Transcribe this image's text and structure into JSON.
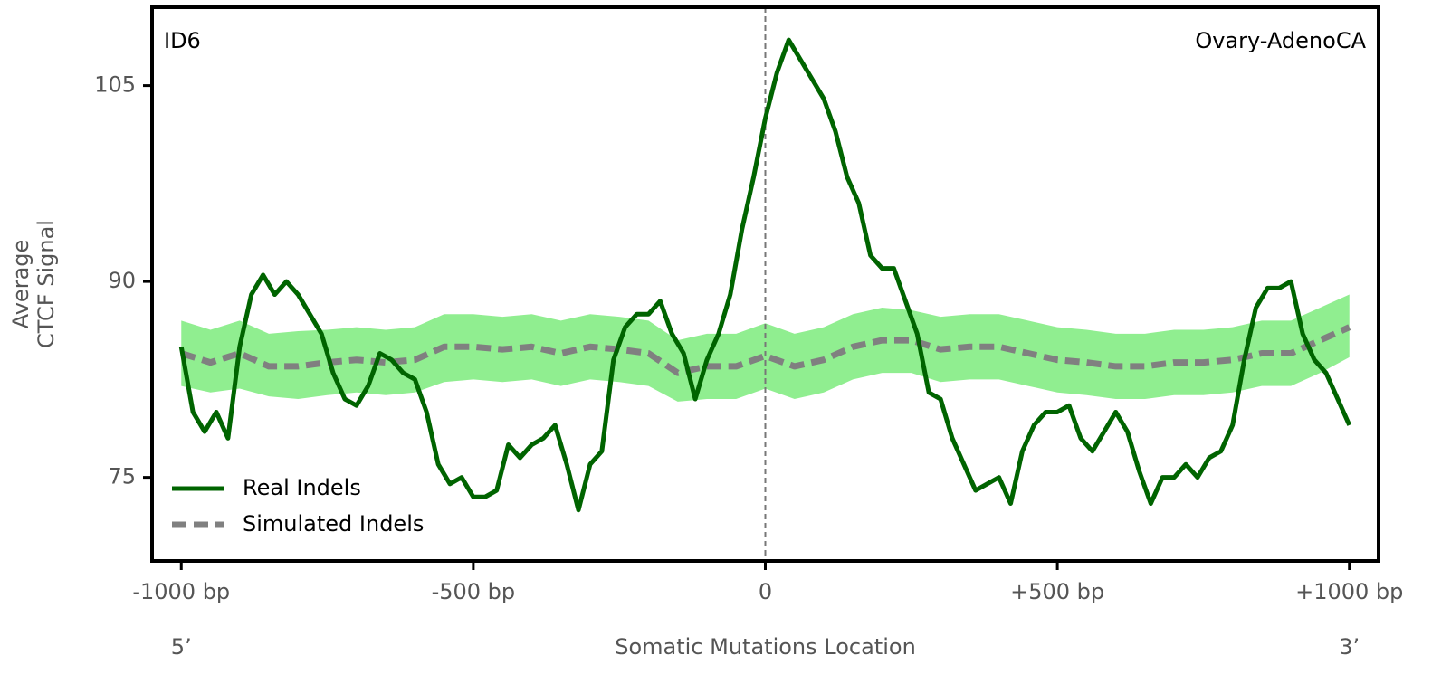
{
  "chart_data": {
    "type": "line",
    "annotations": [
      "ID6",
      "Ovary-AdenoCA"
    ],
    "xlabel": "Somatic Mutations Location",
    "ylabel": [
      "Average",
      "CTCF Signal"
    ],
    "x_end_labels": [
      "5’",
      "3’"
    ],
    "xlim": [
      -1050,
      1050
    ],
    "ylim": [
      68.6,
      111
    ],
    "xticks": [
      {
        "value": -1000,
        "label": "-1000 bp"
      },
      {
        "value": -500,
        "label": "-500 bp"
      },
      0,
      {
        "value": 500,
        "label": "+500 bp"
      },
      {
        "value": 1000,
        "label": "+1000 bp"
      }
    ],
    "yticks": [
      75,
      90,
      105
    ],
    "vline": 0,
    "legend": "lower left",
    "series": [
      {
        "name": "Real Indels",
        "color": "#006400",
        "x": [
          -1000,
          -980,
          -960,
          -940,
          -920,
          -900,
          -880,
          -860,
          -840,
          -820,
          -800,
          -780,
          -760,
          -740,
          -720,
          -700,
          -680,
          -660,
          -640,
          -620,
          -600,
          -580,
          -560,
          -540,
          -520,
          -500,
          -480,
          -460,
          -440,
          -420,
          -400,
          -380,
          -360,
          -340,
          -320,
          -300,
          -280,
          -260,
          -240,
          -220,
          -200,
          -180,
          -160,
          -140,
          -120,
          -100,
          -80,
          -60,
          -40,
          -20,
          0,
          20,
          40,
          60,
          80,
          100,
          120,
          140,
          160,
          180,
          200,
          220,
          240,
          260,
          280,
          300,
          320,
          340,
          360,
          380,
          400,
          420,
          440,
          460,
          480,
          500,
          520,
          540,
          560,
          580,
          600,
          620,
          640,
          660,
          680,
          700,
          720,
          740,
          760,
          780,
          800,
          820,
          840,
          860,
          880,
          900,
          920,
          940,
          960,
          980,
          1000
        ],
        "values": [
          85,
          80,
          78.5,
          80,
          78,
          85,
          89,
          90.5,
          89,
          90,
          89,
          87.5,
          86,
          83,
          81,
          80.5,
          82,
          84.5,
          84,
          83,
          82.5,
          80,
          76,
          74.5,
          75,
          73.5,
          73.5,
          74,
          77.5,
          76.5,
          77.5,
          78,
          79,
          76,
          72.5,
          76,
          77,
          84,
          86.5,
          87.5,
          87.5,
          88.5,
          86,
          84.5,
          81,
          84,
          86,
          89,
          94,
          98,
          102.5,
          106,
          108.5,
          107,
          105.5,
          104,
          101.5,
          98,
          96,
          92,
          91,
          91,
          88.5,
          86,
          81.5,
          81,
          78,
          76,
          74,
          74.5,
          75,
          73,
          77,
          79,
          80,
          80,
          80.5,
          78,
          77,
          78.5,
          80,
          78.5,
          75.5,
          73,
          75,
          75,
          76,
          75,
          76.5,
          77,
          79,
          84,
          88,
          89.5,
          89.5,
          90,
          86,
          84,
          83,
          81,
          79
        ]
      },
      {
        "name": "Simulated Indels",
        "color": "#808080",
        "x": [
          -1000,
          -950,
          -900,
          -850,
          -800,
          -750,
          -700,
          -650,
          -600,
          -550,
          -500,
          -450,
          -400,
          -350,
          -300,
          -250,
          -200,
          -150,
          -100,
          -50,
          0,
          50,
          100,
          150,
          200,
          250,
          300,
          350,
          400,
          450,
          500,
          550,
          600,
          650,
          700,
          750,
          800,
          850,
          900,
          950,
          1000
        ],
        "values": [
          84.5,
          83.8,
          84.5,
          83.5,
          83.5,
          83.8,
          84,
          83.8,
          84,
          85,
          85,
          84.8,
          85,
          84.5,
          85,
          84.8,
          84.5,
          83,
          83.5,
          83.5,
          84.3,
          83.5,
          84,
          85,
          85.5,
          85.5,
          84.8,
          85,
          85,
          84.5,
          84,
          83.8,
          83.5,
          83.5,
          83.8,
          83.8,
          84,
          84.5,
          84.5,
          85.5,
          86.5
        ]
      }
    ],
    "band": {
      "color": "#90ee90",
      "x": [
        -1000,
        -950,
        -900,
        -850,
        -800,
        -750,
        -700,
        -650,
        -600,
        -550,
        -500,
        -450,
        -400,
        -350,
        -300,
        -250,
        -200,
        -150,
        -100,
        -50,
        0,
        50,
        100,
        150,
        200,
        250,
        300,
        350,
        400,
        450,
        500,
        550,
        600,
        650,
        700,
        750,
        800,
        850,
        900,
        950,
        1000
      ],
      "lower": [
        82,
        81.5,
        81.8,
        81.2,
        81,
        81.3,
        81.5,
        81.3,
        81.5,
        82.3,
        82.5,
        82.3,
        82.5,
        82,
        82.5,
        82.3,
        82,
        80.8,
        81,
        81,
        81.8,
        81,
        81.5,
        82.5,
        83,
        83,
        82.3,
        82.5,
        82.5,
        82,
        81.5,
        81.3,
        81,
        81,
        81.3,
        81.3,
        81.5,
        82,
        82,
        83,
        84.2
      ],
      "upper": [
        87,
        86.3,
        87,
        86,
        86.2,
        86.3,
        86.5,
        86.3,
        86.5,
        87.5,
        87.5,
        87.3,
        87.5,
        87,
        87.5,
        87.3,
        87,
        85.5,
        86,
        86,
        86.8,
        86,
        86.5,
        87.5,
        88,
        87.8,
        87.3,
        87.5,
        87.5,
        87,
        86.5,
        86.3,
        86,
        86,
        86.3,
        86.3,
        86.5,
        87,
        87,
        88,
        89
      ]
    }
  }
}
